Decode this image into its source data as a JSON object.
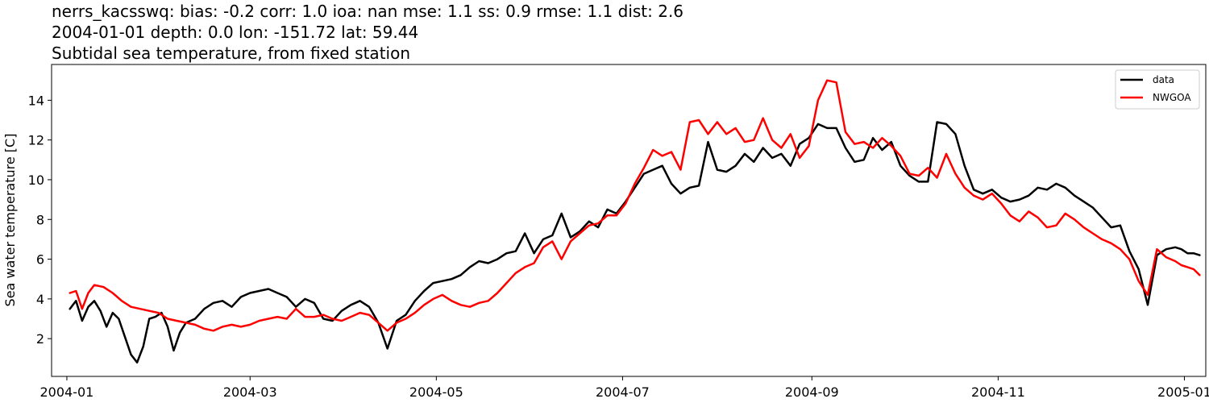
{
  "title": {
    "line1": "nerrs_kacsswq: bias: -0.2  corr: 1.0  ioa: nan  mse: 1.1  ss: 0.9  rmse: 1.1  dist: 2.6",
    "line2": "2004-01-01 depth: 0.0 lon: -151.72 lat: 59.44",
    "line3": "Subtidal sea temperature, from fixed station"
  },
  "chart_data": {
    "type": "line",
    "ylabel": "Sea water temperature [C]",
    "xlabel": "",
    "xlim": [
      "2003-12-27",
      "2005-01-08"
    ],
    "ylim": [
      0.1,
      15.8
    ],
    "x_ticks": [
      "2004-01",
      "2004-03",
      "2004-05",
      "2004-07",
      "2004-09",
      "2004-11",
      "2005-01"
    ],
    "y_ticks": [
      2,
      4,
      6,
      8,
      10,
      12,
      14
    ],
    "grid": false,
    "legend_position": "top-right",
    "series": [
      {
        "name": "data",
        "color": "#000000",
        "points": [
          [
            "2004-01-02",
            3.5
          ],
          [
            "2004-01-04",
            3.9
          ],
          [
            "2004-01-06",
            2.9
          ],
          [
            "2004-01-08",
            3.6
          ],
          [
            "2004-01-10",
            3.9
          ],
          [
            "2004-01-12",
            3.4
          ],
          [
            "2004-01-14",
            2.6
          ],
          [
            "2004-01-16",
            3.3
          ],
          [
            "2004-01-18",
            3.0
          ],
          [
            "2004-01-20",
            2.1
          ],
          [
            "2004-01-22",
            1.2
          ],
          [
            "2004-01-24",
            0.8
          ],
          [
            "2004-01-26",
            1.6
          ],
          [
            "2004-01-28",
            3.0
          ],
          [
            "2004-01-30",
            3.1
          ],
          [
            "2004-02-01",
            3.3
          ],
          [
            "2004-02-03",
            2.6
          ],
          [
            "2004-02-05",
            1.4
          ],
          [
            "2004-02-07",
            2.3
          ],
          [
            "2004-02-09",
            2.8
          ],
          [
            "2004-02-12",
            3.0
          ],
          [
            "2004-02-15",
            3.5
          ],
          [
            "2004-02-18",
            3.8
          ],
          [
            "2004-02-21",
            3.9
          ],
          [
            "2004-02-24",
            3.6
          ],
          [
            "2004-02-27",
            4.1
          ],
          [
            "2004-03-01",
            4.3
          ],
          [
            "2004-03-04",
            4.4
          ],
          [
            "2004-03-07",
            4.5
          ],
          [
            "2004-03-10",
            4.3
          ],
          [
            "2004-03-13",
            4.1
          ],
          [
            "2004-03-16",
            3.6
          ],
          [
            "2004-03-19",
            4.0
          ],
          [
            "2004-03-22",
            3.8
          ],
          [
            "2004-03-25",
            3.0
          ],
          [
            "2004-03-28",
            2.9
          ],
          [
            "2004-03-31",
            3.4
          ],
          [
            "2004-04-03",
            3.7
          ],
          [
            "2004-04-06",
            3.9
          ],
          [
            "2004-04-09",
            3.6
          ],
          [
            "2004-04-12",
            2.8
          ],
          [
            "2004-04-15",
            1.5
          ],
          [
            "2004-04-18",
            2.9
          ],
          [
            "2004-04-21",
            3.2
          ],
          [
            "2004-04-24",
            3.9
          ],
          [
            "2004-04-27",
            4.4
          ],
          [
            "2004-04-30",
            4.8
          ],
          [
            "2004-05-03",
            4.9
          ],
          [
            "2004-05-06",
            5.0
          ],
          [
            "2004-05-09",
            5.2
          ],
          [
            "2004-05-12",
            5.6
          ],
          [
            "2004-05-15",
            5.9
          ],
          [
            "2004-05-18",
            5.8
          ],
          [
            "2004-05-21",
            6.0
          ],
          [
            "2004-05-24",
            6.3
          ],
          [
            "2004-05-27",
            6.4
          ],
          [
            "2004-05-30",
            7.3
          ],
          [
            "2004-06-02",
            6.3
          ],
          [
            "2004-06-05",
            7.0
          ],
          [
            "2004-06-08",
            7.2
          ],
          [
            "2004-06-11",
            8.3
          ],
          [
            "2004-06-14",
            7.1
          ],
          [
            "2004-06-17",
            7.4
          ],
          [
            "2004-06-20",
            7.9
          ],
          [
            "2004-06-23",
            7.6
          ],
          [
            "2004-06-26",
            8.5
          ],
          [
            "2004-06-29",
            8.3
          ],
          [
            "2004-07-02",
            8.9
          ],
          [
            "2004-07-05",
            9.6
          ],
          [
            "2004-07-08",
            10.3
          ],
          [
            "2004-07-11",
            10.5
          ],
          [
            "2004-07-14",
            10.7
          ],
          [
            "2004-07-17",
            9.8
          ],
          [
            "2004-07-20",
            9.3
          ],
          [
            "2004-07-23",
            9.6
          ],
          [
            "2004-07-26",
            9.7
          ],
          [
            "2004-07-29",
            11.9
          ],
          [
            "2004-08-01",
            10.5
          ],
          [
            "2004-08-04",
            10.4
          ],
          [
            "2004-08-07",
            10.7
          ],
          [
            "2004-08-10",
            11.3
          ],
          [
            "2004-08-13",
            10.9
          ],
          [
            "2004-08-16",
            11.6
          ],
          [
            "2004-08-19",
            11.1
          ],
          [
            "2004-08-22",
            11.3
          ],
          [
            "2004-08-25",
            10.7
          ],
          [
            "2004-08-28",
            11.8
          ],
          [
            "2004-08-31",
            12.1
          ],
          [
            "2004-09-03",
            12.8
          ],
          [
            "2004-09-06",
            12.6
          ],
          [
            "2004-09-09",
            12.6
          ],
          [
            "2004-09-12",
            11.6
          ],
          [
            "2004-09-15",
            10.9
          ],
          [
            "2004-09-18",
            11.0
          ],
          [
            "2004-09-21",
            12.1
          ],
          [
            "2004-09-24",
            11.5
          ],
          [
            "2004-09-27",
            11.9
          ],
          [
            "2004-09-30",
            10.7
          ],
          [
            "2004-10-03",
            10.2
          ],
          [
            "2004-10-06",
            9.9
          ],
          [
            "2004-10-09",
            9.9
          ],
          [
            "2004-10-12",
            12.9
          ],
          [
            "2004-10-15",
            12.8
          ],
          [
            "2004-10-18",
            12.3
          ],
          [
            "2004-10-21",
            10.7
          ],
          [
            "2004-10-24",
            9.5
          ],
          [
            "2004-10-27",
            9.3
          ],
          [
            "2004-10-30",
            9.5
          ],
          [
            "2004-11-02",
            9.1
          ],
          [
            "2004-11-05",
            8.9
          ],
          [
            "2004-11-08",
            9.0
          ],
          [
            "2004-11-11",
            9.2
          ],
          [
            "2004-11-14",
            9.6
          ],
          [
            "2004-11-17",
            9.5
          ],
          [
            "2004-11-20",
            9.8
          ],
          [
            "2004-11-23",
            9.6
          ],
          [
            "2004-11-26",
            9.2
          ],
          [
            "2004-11-29",
            8.9
          ],
          [
            "2004-12-02",
            8.6
          ],
          [
            "2004-12-05",
            8.1
          ],
          [
            "2004-12-08",
            7.6
          ],
          [
            "2004-12-11",
            7.7
          ],
          [
            "2004-12-14",
            6.4
          ],
          [
            "2004-12-17",
            5.5
          ],
          [
            "2004-12-20",
            3.7
          ],
          [
            "2004-12-23",
            6.2
          ],
          [
            "2004-12-26",
            6.5
          ],
          [
            "2004-12-29",
            6.6
          ],
          [
            "2004-12-31",
            6.5
          ],
          [
            "2005-01-02",
            6.3
          ],
          [
            "2005-01-04",
            6.3
          ],
          [
            "2005-01-06",
            6.2
          ]
        ]
      },
      {
        "name": "NWGOA",
        "color": "#ff0000",
        "points": [
          [
            "2004-01-02",
            4.3
          ],
          [
            "2004-01-04",
            4.4
          ],
          [
            "2004-01-06",
            3.5
          ],
          [
            "2004-01-08",
            4.3
          ],
          [
            "2004-01-10",
            4.7
          ],
          [
            "2004-01-13",
            4.6
          ],
          [
            "2004-01-16",
            4.3
          ],
          [
            "2004-01-19",
            3.9
          ],
          [
            "2004-01-22",
            3.6
          ],
          [
            "2004-01-25",
            3.5
          ],
          [
            "2004-01-28",
            3.4
          ],
          [
            "2004-01-31",
            3.3
          ],
          [
            "2004-02-03",
            3.0
          ],
          [
            "2004-02-06",
            2.9
          ],
          [
            "2004-02-09",
            2.8
          ],
          [
            "2004-02-12",
            2.7
          ],
          [
            "2004-02-15",
            2.5
          ],
          [
            "2004-02-18",
            2.4
          ],
          [
            "2004-02-21",
            2.6
          ],
          [
            "2004-02-24",
            2.7
          ],
          [
            "2004-02-27",
            2.6
          ],
          [
            "2004-03-01",
            2.7
          ],
          [
            "2004-03-04",
            2.9
          ],
          [
            "2004-03-07",
            3.0
          ],
          [
            "2004-03-10",
            3.1
          ],
          [
            "2004-03-13",
            3.0
          ],
          [
            "2004-03-16",
            3.5
          ],
          [
            "2004-03-19",
            3.1
          ],
          [
            "2004-03-22",
            3.1
          ],
          [
            "2004-03-25",
            3.2
          ],
          [
            "2004-03-28",
            3.0
          ],
          [
            "2004-03-31",
            2.9
          ],
          [
            "2004-04-03",
            3.1
          ],
          [
            "2004-04-06",
            3.3
          ],
          [
            "2004-04-09",
            3.2
          ],
          [
            "2004-04-12",
            2.8
          ],
          [
            "2004-04-15",
            2.4
          ],
          [
            "2004-04-18",
            2.8
          ],
          [
            "2004-04-21",
            3.0
          ],
          [
            "2004-04-24",
            3.3
          ],
          [
            "2004-04-27",
            3.7
          ],
          [
            "2004-04-30",
            4.0
          ],
          [
            "2004-05-03",
            4.2
          ],
          [
            "2004-05-06",
            3.9
          ],
          [
            "2004-05-09",
            3.7
          ],
          [
            "2004-05-12",
            3.6
          ],
          [
            "2004-05-15",
            3.8
          ],
          [
            "2004-05-18",
            3.9
          ],
          [
            "2004-05-21",
            4.3
          ],
          [
            "2004-05-24",
            4.8
          ],
          [
            "2004-05-27",
            5.3
          ],
          [
            "2004-05-30",
            5.6
          ],
          [
            "2004-06-02",
            5.8
          ],
          [
            "2004-06-05",
            6.6
          ],
          [
            "2004-06-08",
            6.9
          ],
          [
            "2004-06-11",
            6.0
          ],
          [
            "2004-06-14",
            6.9
          ],
          [
            "2004-06-17",
            7.3
          ],
          [
            "2004-06-20",
            7.7
          ],
          [
            "2004-06-23",
            7.8
          ],
          [
            "2004-06-26",
            8.2
          ],
          [
            "2004-06-29",
            8.2
          ],
          [
            "2004-07-02",
            8.8
          ],
          [
            "2004-07-05",
            9.8
          ],
          [
            "2004-07-08",
            10.6
          ],
          [
            "2004-07-11",
            11.5
          ],
          [
            "2004-07-14",
            11.2
          ],
          [
            "2004-07-17",
            11.4
          ],
          [
            "2004-07-20",
            10.5
          ],
          [
            "2004-07-23",
            12.9
          ],
          [
            "2004-07-26",
            13.0
          ],
          [
            "2004-07-29",
            12.3
          ],
          [
            "2004-08-01",
            12.9
          ],
          [
            "2004-08-04",
            12.3
          ],
          [
            "2004-08-07",
            12.6
          ],
          [
            "2004-08-10",
            11.9
          ],
          [
            "2004-08-13",
            12.0
          ],
          [
            "2004-08-16",
            13.1
          ],
          [
            "2004-08-19",
            12.0
          ],
          [
            "2004-08-22",
            11.6
          ],
          [
            "2004-08-25",
            12.3
          ],
          [
            "2004-08-28",
            11.1
          ],
          [
            "2004-08-31",
            11.7
          ],
          [
            "2004-09-03",
            14.0
          ],
          [
            "2004-09-06",
            15.0
          ],
          [
            "2004-09-09",
            14.9
          ],
          [
            "2004-09-12",
            12.4
          ],
          [
            "2004-09-15",
            11.8
          ],
          [
            "2004-09-18",
            11.9
          ],
          [
            "2004-09-21",
            11.6
          ],
          [
            "2004-09-24",
            12.1
          ],
          [
            "2004-09-27",
            11.7
          ],
          [
            "2004-09-30",
            11.2
          ],
          [
            "2004-10-03",
            10.3
          ],
          [
            "2004-10-06",
            10.2
          ],
          [
            "2004-10-09",
            10.6
          ],
          [
            "2004-10-12",
            10.1
          ],
          [
            "2004-10-15",
            11.3
          ],
          [
            "2004-10-18",
            10.3
          ],
          [
            "2004-10-21",
            9.6
          ],
          [
            "2004-10-24",
            9.2
          ],
          [
            "2004-10-27",
            9.0
          ],
          [
            "2004-10-30",
            9.3
          ],
          [
            "2004-11-02",
            8.8
          ],
          [
            "2004-11-05",
            8.2
          ],
          [
            "2004-11-08",
            7.9
          ],
          [
            "2004-11-11",
            8.4
          ],
          [
            "2004-11-14",
            8.1
          ],
          [
            "2004-11-17",
            7.6
          ],
          [
            "2004-11-20",
            7.7
          ],
          [
            "2004-11-23",
            8.3
          ],
          [
            "2004-11-26",
            8.0
          ],
          [
            "2004-11-29",
            7.6
          ],
          [
            "2004-12-02",
            7.3
          ],
          [
            "2004-12-05",
            7.0
          ],
          [
            "2004-12-08",
            6.8
          ],
          [
            "2004-12-11",
            6.5
          ],
          [
            "2004-12-14",
            6.0
          ],
          [
            "2004-12-17",
            4.9
          ],
          [
            "2004-12-20",
            4.2
          ],
          [
            "2004-12-23",
            6.5
          ],
          [
            "2004-12-26",
            6.1
          ],
          [
            "2004-12-29",
            5.9
          ],
          [
            "2004-12-31",
            5.7
          ],
          [
            "2005-01-02",
            5.6
          ],
          [
            "2005-01-04",
            5.5
          ],
          [
            "2005-01-06",
            5.2
          ]
        ]
      }
    ]
  }
}
